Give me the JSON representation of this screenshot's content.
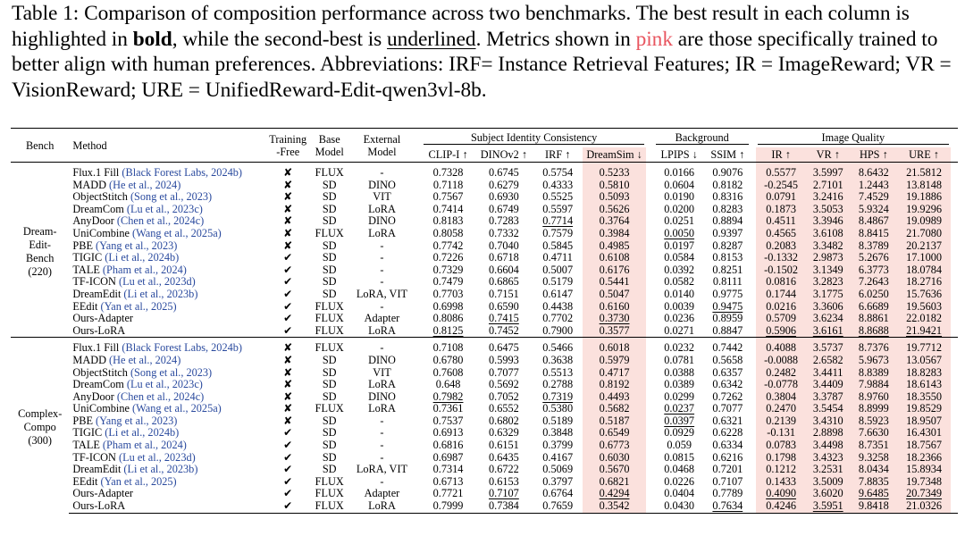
{
  "caption": {
    "label": "Table 1:",
    "t1": " Comparison of composition performance across two benchmarks. The best result in each column is highlighted in ",
    "bold_word": "bold",
    "t2": ", while the second-best is ",
    "underlined_word": "underlined",
    "t3": ". Metrics shown in ",
    "pink_word": "pink",
    "t4": " are those specifically trained to better align with human preferences. Abbreviations: IRF= Instance Retrieval Features; IR = ImageReward; VR = VisionReward; URE = UnifiedReward-Edit-qwen3vl-8b."
  },
  "header": {
    "bench": "Bench",
    "method": "Method",
    "training_a": "Training",
    "training_b": "-Free",
    "base_a": "Base",
    "base_b": "Model",
    "external_a": "External",
    "external_b": "Model",
    "group_sic": "Subject Identity Consistency",
    "group_bg": "Background",
    "group_iq": "Image Quality",
    "cols": [
      "CLIP-I ↑",
      "DINOv2 ↑",
      "IRF ↑",
      "DreamSim ↓",
      "LPIPS ↓",
      "SSIM ↑",
      "IR ↑",
      "VR ↑",
      "HPS ↑",
      "URE ↑"
    ]
  },
  "colors": {
    "pink_bg": "#fbe1dd",
    "cite": "#2a4a9e",
    "pink_text": "#e8555f"
  },
  "sections": [
    {
      "bench_lines": [
        "Dream-",
        "Edit-",
        "Bench",
        "(220)"
      ],
      "rows": [
        {
          "name": "Flux.1 Fill",
          "cite": "(Black Forest Labs, 2024b)",
          "tf": "✘",
          "base": "FLUX",
          "ext": "-",
          "vals": [
            "0.7328",
            "0.6745",
            "0.5754",
            "0.5233",
            "0.0166",
            "0.9076",
            "0.5577",
            "3.5997",
            "8.6432",
            "21.5812"
          ]
        },
        {
          "name": "MADD",
          "cite": "(He et al., 2024)",
          "tf": "✘",
          "base": "SD",
          "ext": "DINO",
          "vals": [
            "0.7118",
            "0.6279",
            "0.4333",
            "0.5810",
            "0.0604",
            "0.8182",
            "-0.2545",
            "2.7101",
            "1.2443",
            "13.8148"
          ]
        },
        {
          "name": "ObjectStitch",
          "cite": "(Song et al., 2023)",
          "tf": "✘",
          "base": "SD",
          "ext": "VIT",
          "vals": [
            "0.7567",
            "0.6930",
            "0.5525",
            "0.5093",
            "0.0190",
            "0.8316",
            "0.0791",
            "3.2416",
            "7.4529",
            "19.1886"
          ]
        },
        {
          "name": "DreamCom",
          "cite": "(Lu et al., 2023c)",
          "tf": "✘",
          "base": "SD",
          "ext": "LoRA",
          "vals": [
            "0.7414",
            "0.6749",
            "0.5597",
            "0.5626",
            "0.0200",
            "0.8283",
            "0.1873",
            "3.5053",
            "5.9324",
            "19.9296"
          ]
        },
        {
          "name": "AnyDoor",
          "cite": "(Chen et al., 2024c)",
          "tf": "✘",
          "base": "SD",
          "ext": "DINO",
          "vals": [
            "0.8183",
            "0.7283",
            "0.7714",
            "0.3764",
            "0.0251",
            "0.8894",
            "0.4511",
            "3.3946",
            "8.4867",
            "19.0989"
          ]
        },
        {
          "name": "UniCombine",
          "cite": "(Wang et al., 2025a)",
          "tf": "✘",
          "base": "FLUX",
          "ext": "LoRA",
          "vals": [
            "0.8058",
            "0.7332",
            "0.7579",
            "0.3984",
            "0.0050",
            "0.9397",
            "0.4565",
            "3.6108",
            "8.8415",
            "21.7080"
          ]
        },
        {
          "name": "PBE",
          "cite": "(Yang et al., 2023)",
          "tf": "✘",
          "base": "SD",
          "ext": "-",
          "vals": [
            "0.7742",
            "0.7040",
            "0.5845",
            "0.4985",
            "0.0197",
            "0.8287",
            "0.2083",
            "3.3482",
            "8.3789",
            "20.2137"
          ]
        },
        {
          "name": "TIGIC",
          "cite": "(Li et al., 2024b)",
          "tf": "✔",
          "base": "SD",
          "ext": "-",
          "vals": [
            "0.7226",
            "0.6718",
            "0.4711",
            "0.6108",
            "0.0584",
            "0.8153",
            "-0.1332",
            "2.9873",
            "5.2676",
            "17.1000"
          ]
        },
        {
          "name": "TALE",
          "cite": "(Pham et al., 2024)",
          "tf": "✔",
          "base": "SD",
          "ext": "-",
          "vals": [
            "0.7329",
            "0.6604",
            "0.5007",
            "0.6176",
            "0.0392",
            "0.8251",
            "-0.1502",
            "3.1349",
            "6.3773",
            "18.0784"
          ]
        },
        {
          "name": "TF-ICON",
          "cite": "(Lu et al., 2023d)",
          "tf": "✔",
          "base": "SD",
          "ext": "-",
          "vals": [
            "0.7479",
            "0.6865",
            "0.5179",
            "0.5441",
            "0.0582",
            "0.8111",
            "0.0816",
            "3.2823",
            "7.2643",
            "18.2716"
          ]
        },
        {
          "name": "DreamEdit",
          "cite": "(Li et al., 2023b)",
          "tf": "✔",
          "base": "SD",
          "ext": "LoRA, VIT",
          "vals": [
            "0.7703",
            "0.7151",
            "0.6147",
            "0.5047",
            "0.0140",
            "0.9775",
            "0.1744",
            "3.1775",
            "6.0250",
            "15.7636"
          ]
        },
        {
          "name": "EEdit",
          "cite": "(Yan et al., 2025)",
          "tf": "✔",
          "base": "FLUX",
          "ext": "-",
          "vals": [
            "0.6998",
            "0.6590",
            "0.4438",
            "0.6160",
            "0.0039",
            "0.9475",
            "0.0216",
            "3.3606",
            "6.6689",
            "19.5603"
          ]
        },
        {
          "name": "Ours-Adapter",
          "cite": "",
          "tf": "✔",
          "base": "FLUX",
          "ext": "Adapter",
          "vals": [
            "0.8086",
            "0.7415",
            "0.7702",
            "0.3730",
            "0.0236",
            "0.8959",
            "0.5709",
            "3.6234",
            "8.8861",
            "22.0182"
          ]
        },
        {
          "name": "Ours-LoRA",
          "cite": "",
          "tf": "✔",
          "base": "FLUX",
          "ext": "LoRA",
          "vals": [
            "0.8125",
            "0.7452",
            "0.7900",
            "0.3577",
            "0.0271",
            "0.8847",
            "0.5906",
            "3.6161",
            "8.8688",
            "21.9421"
          ]
        }
      ]
    },
    {
      "bench_lines": [
        "Complex-",
        "Compo",
        "(300)"
      ],
      "rows": [
        {
          "name": "Flux.1 Fill",
          "cite": "(Black Forest Labs, 2024b)",
          "tf": "✘",
          "base": "FLUX",
          "ext": "-",
          "vals": [
            "0.7108",
            "0.6475",
            "0.5466",
            "0.6018",
            "0.0232",
            "0.7442",
            "0.4088",
            "3.5737",
            "8.7376",
            "19.7712"
          ]
        },
        {
          "name": "MADD",
          "cite": "(He et al., 2024)",
          "tf": "✘",
          "base": "SD",
          "ext": "DINO",
          "vals": [
            "0.6780",
            "0.5993",
            "0.3638",
            "0.5979",
            "0.0781",
            "0.5658",
            "-0.0088",
            "2.6582",
            "5.9673",
            "13.0567"
          ]
        },
        {
          "name": "ObjectStitch",
          "cite": "(Song et al., 2023)",
          "tf": "✘",
          "base": "SD",
          "ext": "VIT",
          "vals": [
            "0.7608",
            "0.7077",
            "0.5513",
            "0.4717",
            "0.0388",
            "0.6357",
            "0.2482",
            "3.4411",
            "8.8389",
            "18.8283"
          ]
        },
        {
          "name": "DreamCom",
          "cite": "(Lu et al., 2023c)",
          "tf": "✘",
          "base": "SD",
          "ext": "LoRA",
          "vals": [
            "0.648",
            "0.5692",
            "0.2788",
            "0.8192",
            "0.0389",
            "0.6342",
            "-0.0778",
            "3.4409",
            "7.9884",
            "18.6143"
          ]
        },
        {
          "name": "AnyDoor",
          "cite": "(Chen et al., 2024c)",
          "tf": "✘",
          "base": "SD",
          "ext": "DINO",
          "vals": [
            "0.7982",
            "0.7052",
            "0.7319",
            "0.4493",
            "0.0299",
            "0.7262",
            "0.3804",
            "3.3787",
            "8.9760",
            "18.3550"
          ]
        },
        {
          "name": "UniCombine",
          "cite": "(Wang et al., 2025a)",
          "tf": "✘",
          "base": "FLUX",
          "ext": "LoRA",
          "vals": [
            "0.7361",
            "0.6552",
            "0.5380",
            "0.5682",
            "0.0237",
            "0.7077",
            "0.2470",
            "3.5454",
            "8.8999",
            "19.8529"
          ]
        },
        {
          "name": "PBE",
          "cite": "(Yang et al., 2023)",
          "tf": "✘",
          "base": "SD",
          "ext": "-",
          "vals": [
            "0.7537",
            "0.6802",
            "0.5189",
            "0.5187",
            "0.0397",
            "0.6321",
            "0.2139",
            "3.4310",
            "8.5923",
            "18.9507"
          ]
        },
        {
          "name": "TIGIC",
          "cite": "(Li et al., 2024b)",
          "tf": "✔",
          "base": "SD",
          "ext": "-",
          "vals": [
            "0.6913",
            "0.6329",
            "0.3848",
            "0.6549",
            "0.0929",
            "0.6228",
            "-0.131",
            "2.8898",
            "7.6630",
            "16.4301"
          ]
        },
        {
          "name": "TALE",
          "cite": "(Pham et al., 2024)",
          "tf": "✔",
          "base": "SD",
          "ext": "-",
          "vals": [
            "0.6816",
            "0.6151",
            "0.3799",
            "0.6773",
            "0.059",
            "0.6334",
            "0.0783",
            "3.4498",
            "8.7351",
            "18.7567"
          ]
        },
        {
          "name": "TF-ICON",
          "cite": "(Lu et al., 2023d)",
          "tf": "✔",
          "base": "SD",
          "ext": "-",
          "vals": [
            "0.6987",
            "0.6435",
            "0.4167",
            "0.6030",
            "0.0815",
            "0.6216",
            "0.1798",
            "3.4323",
            "9.3258",
            "18.2366"
          ]
        },
        {
          "name": "DreamEdit",
          "cite": "(Li et al., 2023b)",
          "tf": "✔",
          "base": "SD",
          "ext": "LoRA, VIT",
          "vals": [
            "0.7314",
            "0.6722",
            "0.5069",
            "0.5670",
            "0.0468",
            "0.7201",
            "0.1212",
            "3.2531",
            "8.0434",
            "15.8934"
          ]
        },
        {
          "name": "EEdit",
          "cite": "(Yan et al., 2025)",
          "tf": "✔",
          "base": "FLUX",
          "ext": "-",
          "vals": [
            "0.6713",
            "0.6153",
            "0.3797",
            "0.6821",
            "0.0226",
            "0.7107",
            "0.1433",
            "3.5009",
            "7.8835",
            "19.7348"
          ]
        },
        {
          "name": "Ours-Adapter",
          "cite": "",
          "tf": "✔",
          "base": "FLUX",
          "ext": "Adapter",
          "vals": [
            "0.7721",
            "0.7107",
            "0.6764",
            "0.4294",
            "0.0404",
            "0.7789",
            "0.4090",
            "3.6020",
            "9.6485",
            "20.7349"
          ]
        },
        {
          "name": "Ours-LoRA",
          "cite": "",
          "tf": "✔",
          "base": "FLUX",
          "ext": "LoRA",
          "vals": [
            "0.7999",
            "0.7384",
            "0.7659",
            "0.3542",
            "0.0430",
            "0.7634",
            "0.4246",
            "3.5951",
            "9.8418",
            "21.0326"
          ]
        }
      ]
    }
  ]
}
